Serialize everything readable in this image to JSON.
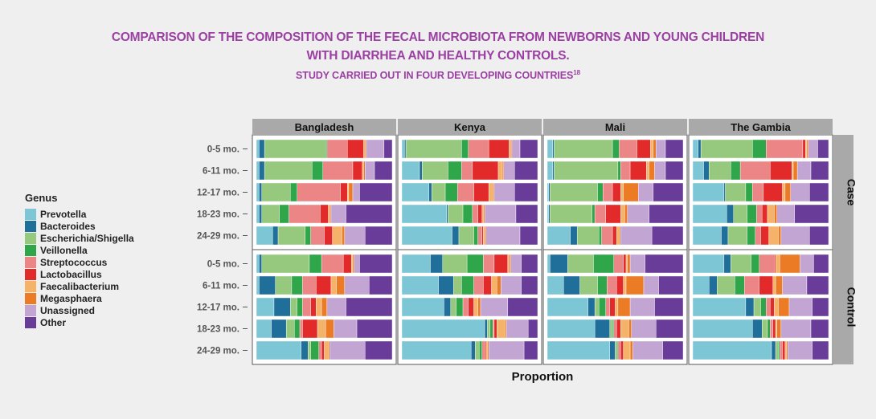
{
  "title_line1": "COMPARISON OF THE COMPOSITION OF THE FECAL MICROBIOTA FROM NEWBORNS AND YOUNG CHILDREN",
  "title_line2": "WITH DIARRHEA AND HEALTHY CONTROLS.",
  "subtitle": "STUDY CARRIED OUT IN FOUR DEVELOPING COUNTRIES",
  "subtitle_ref": "18",
  "legend_title": "Genus",
  "chart_data": {
    "type": "stacked-bar-horizontal",
    "xlabel": "Proportion",
    "xlim": [
      0,
      1
    ],
    "columns": [
      "Bangladesh",
      "Kenya",
      "Mali",
      "The Gambia"
    ],
    "rows": [
      "Case",
      "Control"
    ],
    "categories": [
      "0-5 mo.",
      "6-11 mo.",
      "12-17 mo.",
      "18-23 mo.",
      "24-29 mo."
    ],
    "genera": [
      {
        "name": "Prevotella",
        "color": "#7cc6d6"
      },
      {
        "name": "Bacteroides",
        "color": "#1f6f9a"
      },
      {
        "name": "Escherichia/Shigella",
        "color": "#96c97d"
      },
      {
        "name": "Veillonella",
        "color": "#2fa64a"
      },
      {
        "name": "Streptococcus",
        "color": "#ec8585"
      },
      {
        "name": "Lactobacillus",
        "color": "#e22a2a"
      },
      {
        "name": "Faecalibacterium",
        "color": "#f5b36a"
      },
      {
        "name": "Megasphaera",
        "color": "#ec7b26"
      },
      {
        "name": "Unassigned",
        "color": "#c3a5d3"
      },
      {
        "name": "Other",
        "color": "#6a3c9a"
      }
    ],
    "panels": [
      {
        "column": "Bangladesh",
        "row": "Case",
        "bars": [
          [
            0.02,
            0.04,
            0.45,
            0.01,
            0.15,
            0.12,
            0.01,
            0.01,
            0.13,
            0.06
          ],
          [
            0.02,
            0.04,
            0.35,
            0.08,
            0.22,
            0.07,
            0.01,
            0.01,
            0.07,
            0.13
          ],
          [
            0.02,
            0.02,
            0.21,
            0.05,
            0.32,
            0.05,
            0.01,
            0.03,
            0.05,
            0.24
          ],
          [
            0.02,
            0.02,
            0.13,
            0.07,
            0.23,
            0.06,
            0.01,
            0.01,
            0.11,
            0.34
          ],
          [
            0.12,
            0.04,
            0.2,
            0.04,
            0.1,
            0.06,
            0.07,
            0.02,
            0.15,
            0.2
          ]
        ]
      },
      {
        "column": "Bangladesh",
        "row": "Control",
        "bars": [
          [
            0.02,
            0.02,
            0.35,
            0.09,
            0.16,
            0.06,
            0.01,
            0.01,
            0.04,
            0.24
          ],
          [
            0.02,
            0.12,
            0.12,
            0.08,
            0.1,
            0.11,
            0.04,
            0.06,
            0.18,
            0.17
          ],
          [
            0.13,
            0.12,
            0.05,
            0.04,
            0.06,
            0.04,
            0.04,
            0.04,
            0.14,
            0.34
          ],
          [
            0.11,
            0.11,
            0.06,
            0.04,
            0.02,
            0.11,
            0.06,
            0.06,
            0.17,
            0.26
          ],
          [
            0.33,
            0.05,
            0.02,
            0.06,
            0.02,
            0.02,
            0.03,
            0.01,
            0.26,
            0.2
          ]
        ]
      },
      {
        "column": "Kenya",
        "row": "Case",
        "bars": [
          [
            0.02,
            0.01,
            0.41,
            0.05,
            0.15,
            0.15,
            0.01,
            0.01,
            0.06,
            0.13
          ],
          [
            0.13,
            0.02,
            0.19,
            0.1,
            0.08,
            0.19,
            0.03,
            0.01,
            0.08,
            0.17
          ],
          [
            0.2,
            0.02,
            0.1,
            0.09,
            0.12,
            0.11,
            0.03,
            0.01,
            0.15,
            0.17
          ],
          [
            0.33,
            0.01,
            0.11,
            0.07,
            0.04,
            0.03,
            0.01,
            0.01,
            0.23,
            0.16
          ],
          [
            0.37,
            0.05,
            0.11,
            0.03,
            0.03,
            0.01,
            0.01,
            0.01,
            0.25,
            0.13
          ]
        ]
      },
      {
        "column": "Kenya",
        "row": "Control",
        "bars": [
          [
            0.21,
            0.09,
            0.18,
            0.12,
            0.08,
            0.1,
            0.01,
            0.01,
            0.08,
            0.12
          ],
          [
            0.27,
            0.11,
            0.06,
            0.09,
            0.07,
            0.06,
            0.04,
            0.03,
            0.15,
            0.12
          ],
          [
            0.31,
            0.05,
            0.04,
            0.05,
            0.04,
            0.04,
            0.03,
            0.02,
            0.2,
            0.22
          ],
          [
            0.61,
            0.02,
            0.02,
            0.02,
            0.01,
            0.02,
            0.06,
            0.01,
            0.16,
            0.07
          ],
          [
            0.51,
            0.03,
            0.03,
            0.02,
            0.02,
            0.01,
            0.01,
            0.01,
            0.26,
            0.1
          ]
        ]
      },
      {
        "column": "Mali",
        "row": "Case",
        "bars": [
          [
            0.04,
            0.01,
            0.43,
            0.05,
            0.13,
            0.1,
            0.02,
            0.02,
            0.07,
            0.13
          ],
          [
            0.04,
            0.01,
            0.47,
            0.02,
            0.07,
            0.12,
            0.02,
            0.04,
            0.08,
            0.13
          ],
          [
            0.01,
            0.01,
            0.35,
            0.04,
            0.07,
            0.06,
            0.02,
            0.11,
            0.11,
            0.22
          ],
          [
            0.01,
            0.01,
            0.31,
            0.02,
            0.08,
            0.11,
            0.03,
            0.02,
            0.16,
            0.25
          ],
          [
            0.17,
            0.05,
            0.16,
            0.02,
            0.08,
            0.03,
            0.02,
            0.01,
            0.23,
            0.23
          ]
        ]
      },
      {
        "column": "Mali",
        "row": "Control",
        "bars": [
          [
            0.02,
            0.13,
            0.19,
            0.15,
            0.07,
            0.02,
            0.01,
            0.02,
            0.11,
            0.28
          ],
          [
            0.12,
            0.12,
            0.13,
            0.07,
            0.07,
            0.05,
            0.02,
            0.13,
            0.11,
            0.18
          ],
          [
            0.3,
            0.05,
            0.03,
            0.05,
            0.03,
            0.04,
            0.02,
            0.09,
            0.18,
            0.21
          ],
          [
            0.35,
            0.11,
            0.02,
            0.01,
            0.02,
            0.03,
            0.06,
            0.02,
            0.18,
            0.2
          ],
          [
            0.46,
            0.04,
            0.01,
            0.01,
            0.02,
            0.02,
            0.05,
            0.02,
            0.22,
            0.15
          ]
        ]
      },
      {
        "column": "The Gambia",
        "row": "Case",
        "bars": [
          [
            0.04,
            0.02,
            0.38,
            0.1,
            0.27,
            0.02,
            0.01,
            0.01,
            0.07,
            0.08
          ],
          [
            0.08,
            0.04,
            0.16,
            0.07,
            0.22,
            0.16,
            0.01,
            0.03,
            0.1,
            0.13
          ],
          [
            0.23,
            0.01,
            0.15,
            0.05,
            0.08,
            0.14,
            0.02,
            0.04,
            0.14,
            0.14
          ],
          [
            0.25,
            0.05,
            0.1,
            0.07,
            0.04,
            0.04,
            0.05,
            0.02,
            0.13,
            0.25
          ],
          [
            0.21,
            0.05,
            0.14,
            0.06,
            0.04,
            0.06,
            0.07,
            0.02,
            0.21,
            0.14
          ]
        ]
      },
      {
        "column": "The Gambia",
        "row": "Control",
        "bars": [
          [
            0.23,
            0.05,
            0.15,
            0.06,
            0.11,
            0.01,
            0.03,
            0.15,
            0.1,
            0.11
          ],
          [
            0.12,
            0.06,
            0.13,
            0.07,
            0.11,
            0.1,
            0.02,
            0.05,
            0.18,
            0.16
          ],
          [
            0.39,
            0.06,
            0.05,
            0.04,
            0.03,
            0.03,
            0.03,
            0.08,
            0.17,
            0.12
          ],
          [
            0.44,
            0.07,
            0.04,
            0.02,
            0.02,
            0.02,
            0.01,
            0.03,
            0.22,
            0.13
          ],
          [
            0.58,
            0.03,
            0.02,
            0.01,
            0.02,
            0.02,
            0.01,
            0.01,
            0.18,
            0.12
          ]
        ]
      }
    ]
  }
}
